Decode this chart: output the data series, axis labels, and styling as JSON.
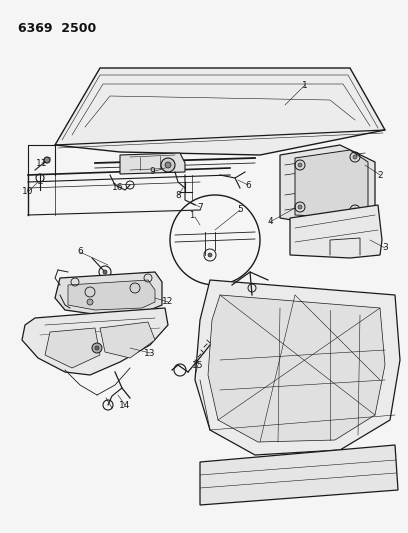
{
  "title_line1": "6369  2500",
  "bg_color": "#f5f5f5",
  "line_color": "#1a1a1a",
  "fig_width": 4.08,
  "fig_height": 5.33,
  "dpi": 100,
  "hood_color": "#e8e8e8",
  "hood_stroke": "#333333"
}
